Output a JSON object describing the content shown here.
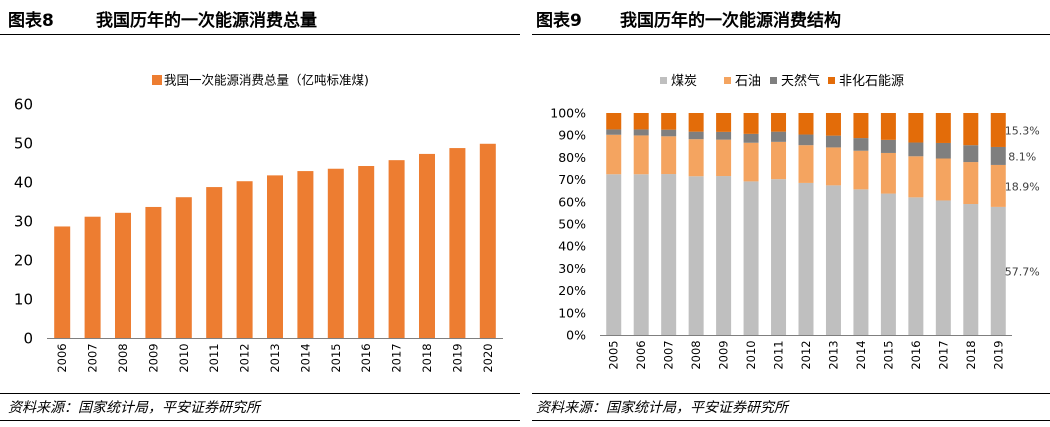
{
  "figures": [
    {
      "number": "图表8",
      "title": "我国历年的一次能源消费总量",
      "source": "资料来源：国家统计局，平安证券研究所"
    },
    {
      "number": "图表9",
      "title": "我国历年的一次能源消费结构",
      "source": "资料来源：国家统计局，平安证券研究所"
    }
  ],
  "colors": {
    "orange_bar": "#ED7D31",
    "coal": "#BFBFBF",
    "oil": "#F4A460",
    "gas": "#7F7F7F",
    "non_fossil": "#E36C09"
  },
  "chart_data": [
    {
      "type": "bar",
      "title": "",
      "legend": [
        "我国一次能源消费总量（亿吨标准煤)"
      ],
      "legend_position": "top-center",
      "categories": [
        "2006",
        "2007",
        "2008",
        "2009",
        "2010",
        "2011",
        "2012",
        "2013",
        "2014",
        "2015",
        "2016",
        "2017",
        "2018",
        "2019",
        "2020"
      ],
      "series": [
        {
          "name": "我国一次能源消费总量（亿吨标准煤)",
          "values": [
            28.6,
            31.1,
            32.1,
            33.6,
            36.1,
            38.7,
            40.2,
            41.7,
            42.8,
            43.4,
            44.1,
            45.6,
            47.2,
            48.7,
            49.8
          ]
        }
      ],
      "ylim": [
        0,
        60
      ],
      "yticks": [
        "0",
        "10",
        "20",
        "30",
        "40",
        "50",
        "60"
      ],
      "xlabel": "",
      "ylabel": "",
      "grid": false
    },
    {
      "type": "bar",
      "stacked": true,
      "title": "",
      "legend": [
        "煤炭",
        "石油",
        "天然气",
        "非化石能源"
      ],
      "legend_position": "top-center",
      "categories": [
        "2005",
        "2006",
        "2007",
        "2008",
        "2009",
        "2010",
        "2011",
        "2012",
        "2013",
        "2014",
        "2015",
        "2016",
        "2017",
        "2018",
        "2019"
      ],
      "series": [
        {
          "name": "煤炭",
          "values": [
            72.4,
            72.4,
            72.5,
            71.5,
            71.6,
            69.2,
            70.2,
            68.5,
            67.4,
            65.6,
            63.7,
            62.0,
            60.6,
            59.0,
            57.7
          ]
        },
        {
          "name": "石油",
          "values": [
            17.8,
            17.5,
            17.0,
            16.7,
            16.4,
            17.4,
            16.8,
            17.0,
            17.1,
            17.4,
            18.3,
            18.5,
            18.9,
            18.9,
            18.9
          ]
        },
        {
          "name": "天然气",
          "values": [
            2.4,
            2.7,
            3.0,
            3.4,
            3.5,
            4.0,
            4.6,
            4.8,
            5.3,
            5.7,
            5.9,
            6.2,
            7.0,
            7.6,
            8.1
          ]
        },
        {
          "name": "非化石能源",
          "values": [
            7.4,
            7.4,
            7.5,
            8.4,
            8.5,
            9.4,
            8.4,
            9.7,
            10.2,
            11.3,
            12.1,
            13.3,
            13.5,
            14.5,
            15.3
          ]
        }
      ],
      "data_labels": [
        "57.7%",
        "18.9%",
        "8.1%",
        "15.3%"
      ],
      "ylim": [
        0,
        100
      ],
      "yticks": [
        "0%",
        "10%",
        "20%",
        "30%",
        "40%",
        "50%",
        "60%",
        "70%",
        "80%",
        "90%",
        "100%"
      ],
      "xlabel": "",
      "ylabel": "",
      "grid": false
    }
  ]
}
